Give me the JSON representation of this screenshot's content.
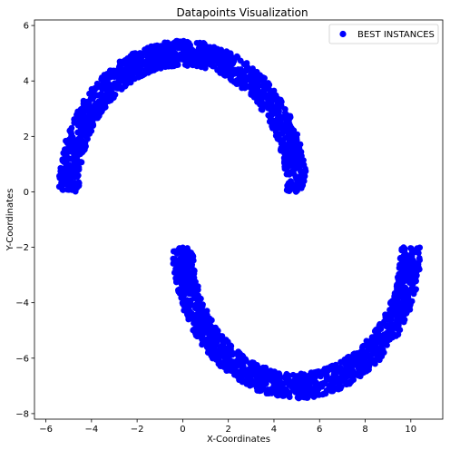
{
  "chart_data": {
    "type": "scatter",
    "title": "Datapoints Visualization",
    "xlabel": "X-Coordinates",
    "ylabel": "Y-Coordinates",
    "xlim": [
      -6.5,
      11.4
    ],
    "ylim": [
      -8.2,
      6.2
    ],
    "xticks": [
      -6,
      -4,
      -2,
      0,
      2,
      4,
      6,
      8,
      10
    ],
    "yticks": [
      -8,
      -6,
      -4,
      -2,
      0,
      2,
      4,
      6
    ],
    "grid": false,
    "legend_position": "top-right",
    "series": [
      {
        "name": "BEST INSTANCES",
        "color": "#0000ff",
        "marker": "circle",
        "shape": "two interleaving half-moons",
        "clusters": [
          {
            "center_x": 0,
            "center_y": 0,
            "radius": 5,
            "band_width": 0.9,
            "arc_from_deg": 0,
            "arc_to_deg": 180
          },
          {
            "center_x": 5,
            "center_y": -2,
            "radius": 5,
            "band_width": 0.9,
            "arc_from_deg": 180,
            "arc_to_deg": 360
          }
        ]
      }
    ]
  }
}
